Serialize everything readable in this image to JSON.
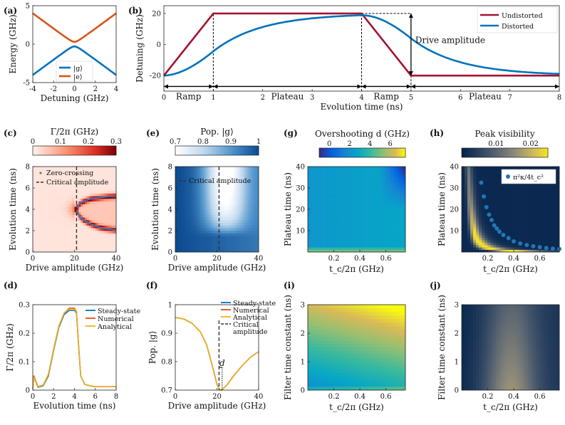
{
  "chart_data": [
    {
      "id": "a",
      "panel_label": "(a)",
      "type": "line",
      "xlabel": "Detuning (GHz)",
      "ylabel": "Energy (GHz)",
      "xlim": [
        -4,
        4
      ],
      "ylim": [
        -5,
        5
      ],
      "xticks": [
        -4,
        -2,
        0,
        2,
        4
      ],
      "yticks": [
        -5,
        0,
        5
      ],
      "xticklabels": [
        "-4",
        "-2",
        "0",
        "2",
        "4"
      ],
      "yticklabels": [
        "-5",
        "0",
        "5"
      ],
      "coupling_gap_ghz": 0.6,
      "series": [
        {
          "name": "|g⟩",
          "color": "#0072BD",
          "x": [
            -4,
            -3,
            -2,
            -1,
            -0.5,
            0,
            0.5,
            1,
            2,
            3,
            4
          ],
          "y": [
            -4.01,
            -3.01,
            -2.02,
            -1.04,
            -0.58,
            -0.3,
            -0.58,
            -1.04,
            -2.02,
            -3.01,
            -4.01
          ]
        },
        {
          "name": "|e⟩",
          "color": "#D95319",
          "x": [
            -4,
            -3,
            -2,
            -1,
            -0.5,
            0,
            0.5,
            1,
            2,
            3,
            4
          ],
          "y": [
            4.01,
            3.01,
            2.02,
            1.04,
            0.58,
            0.3,
            0.58,
            1.04,
            2.02,
            3.01,
            4.01
          ]
        }
      ],
      "legend": {
        "position": "bottom-right",
        "entries": [
          "|g⟩",
          "|e⟩"
        ]
      }
    },
    {
      "id": "b",
      "panel_label": "(b)",
      "type": "line",
      "xlabel": "Evolution time (ns)",
      "ylabel": "Detuning (GHz)",
      "xlim": [
        0,
        8
      ],
      "ylim": [
        -30,
        25
      ],
      "xticks": [
        0,
        1,
        2,
        3,
        4,
        5,
        6,
        7,
        8
      ],
      "xticklabels": [
        "0",
        "1",
        "2",
        "3",
        "4",
        "5",
        "6",
        "7",
        "8"
      ],
      "yticks": [
        -20,
        0,
        20
      ],
      "yticklabels": [
        "-20",
        "0",
        "20"
      ],
      "series": [
        {
          "name": "Undistorted",
          "color": "#A2142F",
          "x": [
            0,
            1,
            4,
            5,
            8
          ],
          "y": [
            -20,
            20,
            20,
            -20,
            -20
          ]
        },
        {
          "name": "Distorted",
          "color": "#0072BD",
          "x": [
            0,
            0.5,
            1,
            1.5,
            2,
            2.5,
            3,
            3.5,
            4,
            4.5,
            5,
            5.5,
            6,
            7,
            8
          ],
          "y": [
            -20,
            -14,
            -5,
            3.5,
            9,
            13,
            15.5,
            17.5,
            18.5,
            13,
            2,
            -6,
            -11,
            -16.5,
            -18.8
          ]
        }
      ],
      "legend": {
        "position": "top-right",
        "entries": [
          "Undistorted",
          "Distorted"
        ]
      },
      "annotations": {
        "drive_amplitude": "Drive amplitude",
        "segments": [
          {
            "label": "Ramp",
            "x0": 0,
            "x1": 1
          },
          {
            "label": "Plateau",
            "x0": 1,
            "x1": 4
          },
          {
            "label": "Ramp",
            "x0": 4,
            "x1": 5
          },
          {
            "label": "Plateau",
            "x0": 5,
            "x1": 8
          }
        ]
      }
    },
    {
      "id": "c",
      "panel_label": "(c)",
      "type": "heatmap",
      "xlabel": "Drive amplitude (GHz)",
      "ylabel": "Evolution time (ns)",
      "xlim": [
        0,
        40
      ],
      "ylim": [
        0,
        8
      ],
      "xticks": [
        0,
        20,
        40
      ],
      "yticks": [
        0,
        2,
        4,
        6,
        8
      ],
      "colorbar": {
        "label": "Γ/2π (GHz)",
        "ticks": [
          "0",
          "0.1",
          "0.2",
          "0.3"
        ],
        "range": [
          0,
          0.3
        ]
      },
      "legend": {
        "entries": [
          "Zero-crossing",
          "Critical amplitude"
        ]
      },
      "critical_amplitude_ghz": 21,
      "zero_crossing": {
        "x": [
          21,
          22,
          23,
          25,
          28,
          32,
          36,
          40
        ],
        "y_upper": [
          4.1,
          4.4,
          4.6,
          4.8,
          5.0,
          5.1,
          5.2,
          5.25
        ],
        "y_lower": [
          3.9,
          3.5,
          3.2,
          2.9,
          2.6,
          2.3,
          2.15,
          2.05
        ]
      }
    },
    {
      "id": "d",
      "panel_label": "(d)",
      "type": "line",
      "xlabel": "Evolution time (ns)",
      "ylabel": "Γ/2π (GHz)",
      "xlim": [
        0,
        8
      ],
      "ylim": [
        0,
        0.3
      ],
      "xticks": [
        0,
        2,
        4,
        6,
        8
      ],
      "yticks": [
        0,
        0.1,
        0.2,
        0.3
      ],
      "yticklabels": [
        "0",
        "0.1",
        "0.2",
        "0.3"
      ],
      "x": [
        0,
        0.1,
        0.5,
        1,
        1.5,
        2,
        2.5,
        3,
        3.5,
        4,
        4.2,
        4.4,
        4.6,
        5,
        5.5,
        6,
        7,
        8
      ],
      "series": [
        {
          "name": "Steady-state",
          "color": "#0072BD",
          "y": [
            0.005,
            0.045,
            0.01,
            0.015,
            0.05,
            0.14,
            0.22,
            0.265,
            0.28,
            0.28,
            0.27,
            0.15,
            0.05,
            0.02,
            0.015,
            0.012,
            0.012,
            0.012
          ]
        },
        {
          "name": "Numerical",
          "color": "#D95319",
          "y": [
            0.005,
            0.05,
            0.012,
            0.018,
            0.055,
            0.145,
            0.225,
            0.27,
            0.288,
            0.288,
            0.275,
            0.155,
            0.05,
            0.02,
            0.015,
            0.012,
            0.012,
            0.012
          ]
        },
        {
          "name": "Analytical",
          "color": "#EDB120",
          "y": [
            0.005,
            0.045,
            0.012,
            0.017,
            0.055,
            0.145,
            0.225,
            0.27,
            0.285,
            0.285,
            0.272,
            0.153,
            0.05,
            0.02,
            0.015,
            0.012,
            0.012,
            0.012
          ]
        }
      ],
      "legend": {
        "position": "top-right",
        "entries": [
          "Steady-state",
          "Numerical",
          "Analytical"
        ]
      }
    },
    {
      "id": "e",
      "panel_label": "(e)",
      "type": "heatmap",
      "xlabel": "Drive amplitude (GHz)",
      "ylabel": "Evolution time (ns)",
      "xlim": [
        0,
        40
      ],
      "ylim": [
        0,
        8
      ],
      "xticks": [
        0,
        20,
        40
      ],
      "yticks": [
        0,
        2,
        4,
        6,
        8
      ],
      "colorbar": {
        "label": "Pop. |g⟩",
        "ticks": [
          "0.7",
          "0.8",
          "0.9",
          "1"
        ],
        "range": [
          0.7,
          1
        ]
      },
      "legend": {
        "entries": [
          "Critical amplitude"
        ]
      },
      "critical_amplitude_ghz": 21
    },
    {
      "id": "f",
      "panel_label": "(f)",
      "type": "line",
      "xlabel": "Drive amplitude (GHz)",
      "ylabel": "Pop. |g⟩",
      "xlim": [
        0,
        40
      ],
      "ylim": [
        0.7,
        1
      ],
      "xticks": [
        0,
        20,
        40
      ],
      "yticks": [
        0.7,
        0.8,
        0.9,
        1
      ],
      "yticklabels": [
        "0.7",
        "0.8",
        "0.9",
        "1"
      ],
      "x": [
        0,
        4,
        8,
        12,
        15,
        18,
        20,
        21,
        22,
        23,
        25,
        28,
        32,
        36,
        40
      ],
      "series": [
        {
          "name": "Steady-state",
          "color": "#0072BD",
          "y": [
            0.955,
            0.95,
            0.935,
            0.905,
            0.86,
            0.78,
            0.72,
            0.705,
            0.7,
            0.705,
            0.72,
            0.75,
            0.785,
            0.815,
            0.835
          ]
        },
        {
          "name": "Numerical",
          "color": "#D95319",
          "y": [
            0.955,
            0.95,
            0.935,
            0.905,
            0.86,
            0.78,
            0.72,
            0.705,
            0.7,
            0.705,
            0.72,
            0.75,
            0.785,
            0.815,
            0.835
          ]
        },
        {
          "name": "Analytical",
          "color": "#EDB120",
          "y": [
            0.955,
            0.95,
            0.935,
            0.905,
            0.86,
            0.78,
            0.72,
            0.705,
            0.7,
            0.705,
            0.72,
            0.75,
            0.785,
            0.815,
            0.835
          ]
        }
      ],
      "critical_amplitude_ghz": 21,
      "overshoot_label": "d",
      "legend": {
        "position": "top-right",
        "entries": [
          "Steady-state",
          "Numerical",
          "Analytical",
          "Critical",
          "amplitude"
        ]
      }
    },
    {
      "id": "g",
      "panel_label": "(g)",
      "type": "heatmap",
      "xlabel": "t_c/2π (GHz)",
      "ylabel": "Plateau time (ns)",
      "xlim": [
        0,
        0.75
      ],
      "ylim": [
        0,
        40
      ],
      "xticks": [
        0.2,
        0.4,
        0.6
      ],
      "yticks": [
        10,
        20,
        30,
        40
      ],
      "colorbar": {
        "label": "Overshooting d (GHz)",
        "ticks": [
          "0",
          "2",
          "4",
          "6"
        ],
        "range": [
          -1,
          7.5
        ]
      }
    },
    {
      "id": "h",
      "panel_label": "(h)",
      "type": "heatmap",
      "xlabel": "t_c/2π (GHz)",
      "ylabel": "Plateau time (ns)",
      "xlim": [
        0,
        0.75
      ],
      "ylim": [
        0,
        40
      ],
      "xticks": [
        0.2,
        0.4,
        0.6
      ],
      "yticks": [
        10,
        20,
        30,
        40
      ],
      "colorbar": {
        "label": "Peak visibility",
        "ticks": [
          "0.01",
          "0.02"
        ],
        "range": [
          0,
          0.025
        ]
      },
      "legend": {
        "entries": [
          "π²κ/4t_c²"
        ]
      },
      "scatter": {
        "x": [
          0.15,
          0.17,
          0.19,
          0.21,
          0.23,
          0.25,
          0.27,
          0.29,
          0.32,
          0.36,
          0.4,
          0.45,
          0.5,
          0.55,
          0.6,
          0.65,
          0.7,
          0.75
        ],
        "y": [
          32.5,
          26,
          21,
          17.5,
          15,
          12.5,
          11,
          9.5,
          8,
          6.5,
          5,
          4,
          3.3,
          2.7,
          2.3,
          1.9,
          1.6,
          1.4
        ]
      }
    },
    {
      "id": "i",
      "panel_label": "(i)",
      "type": "heatmap",
      "xlabel": "t_c/2π (GHz)",
      "ylabel": "Filter time constant (ns)",
      "xlim": [
        0,
        0.75
      ],
      "ylim": [
        0,
        3
      ],
      "xticks": [
        0.2,
        0.4,
        0.6
      ],
      "yticks": [
        0,
        1,
        2,
        3
      ]
    },
    {
      "id": "j",
      "panel_label": "(j)",
      "type": "heatmap",
      "xlabel": "t_c/2π (GHz)",
      "ylabel": "Filter time constant (ns)",
      "xlim": [
        0,
        0.75
      ],
      "ylim": [
        0,
        3
      ],
      "xticks": [
        0.2,
        0.4,
        0.6
      ],
      "yticks": [
        0,
        1,
        2,
        3
      ]
    }
  ]
}
